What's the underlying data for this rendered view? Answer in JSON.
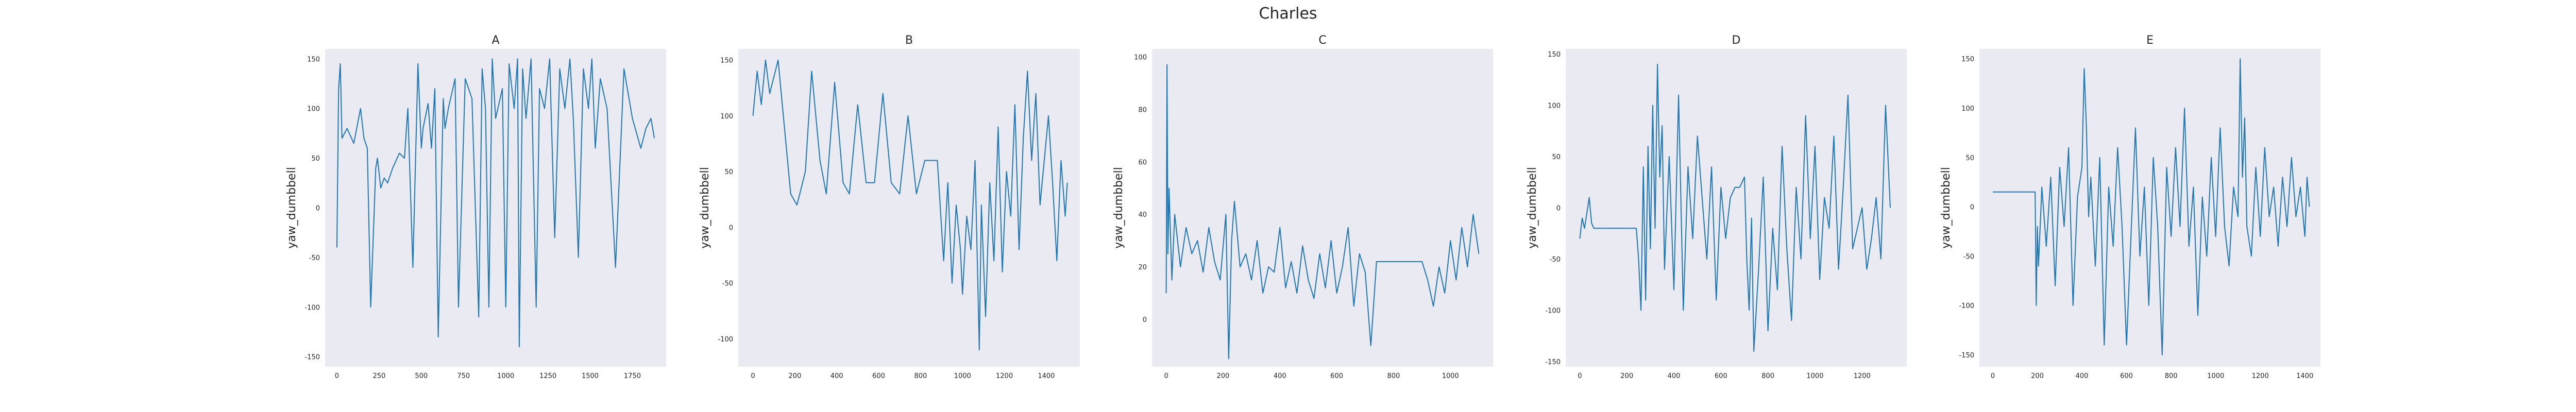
{
  "suptitle": "Charles",
  "chart_data": [
    {
      "type": "line",
      "title": "A",
      "ylabel": "yaw_dumbbell",
      "xlim": [
        -70,
        1950
      ],
      "ylim": [
        -160,
        160
      ],
      "xticks": [
        0,
        250,
        500,
        750,
        1000,
        1250,
        1500,
        1750
      ],
      "yticks": [
        -150,
        -100,
        -50,
        0,
        50,
        100,
        150
      ],
      "grid": false,
      "x": [
        0,
        10,
        20,
        30,
        60,
        100,
        140,
        160,
        180,
        200,
        230,
        240,
        260,
        280,
        300,
        330,
        370,
        400,
        420,
        450,
        480,
        500,
        510,
        540,
        560,
        580,
        600,
        630,
        640,
        660,
        700,
        720,
        760,
        800,
        840,
        860,
        880,
        900,
        920,
        940,
        980,
        1000,
        1020,
        1050,
        1070,
        1080,
        1100,
        1120,
        1150,
        1180,
        1200,
        1230,
        1260,
        1290,
        1320,
        1350,
        1380,
        1400,
        1430,
        1460,
        1490,
        1510,
        1530,
        1560,
        1600,
        1650,
        1700,
        1750,
        1800,
        1830,
        1860,
        1880
      ],
      "y": [
        -40,
        120,
        145,
        70,
        80,
        65,
        100,
        70,
        60,
        -100,
        40,
        50,
        20,
        30,
        25,
        40,
        55,
        50,
        100,
        -60,
        145,
        60,
        80,
        105,
        60,
        120,
        -130,
        110,
        80,
        100,
        130,
        -100,
        130,
        110,
        -110,
        140,
        100,
        -100,
        150,
        90,
        120,
        -100,
        145,
        100,
        150,
        -140,
        140,
        90,
        150,
        -100,
        120,
        100,
        150,
        -30,
        140,
        100,
        150,
        90,
        -50,
        140,
        100,
        150,
        60,
        130,
        100,
        -60,
        140,
        90,
        60,
        80,
        90,
        70
      ]
    },
    {
      "type": "line",
      "title": "B",
      "ylabel": "yaw_dumbbell",
      "xlim": [
        -70,
        1560
      ],
      "ylim": [
        -125,
        160
      ],
      "xticks": [
        0,
        200,
        400,
        600,
        800,
        1000,
        1200,
        1400
      ],
      "yticks": [
        -100,
        -50,
        0,
        50,
        100,
        150
      ],
      "grid": false,
      "x": [
        0,
        20,
        40,
        60,
        80,
        120,
        150,
        180,
        210,
        250,
        280,
        320,
        350,
        390,
        430,
        460,
        500,
        540,
        580,
        620,
        660,
        700,
        740,
        780,
        820,
        860,
        880,
        900,
        910,
        930,
        950,
        970,
        990,
        1000,
        1020,
        1040,
        1060,
        1080,
        1090,
        1110,
        1130,
        1150,
        1170,
        1190,
        1210,
        1230,
        1250,
        1270,
        1290,
        1310,
        1330,
        1350,
        1370,
        1390,
        1410,
        1430,
        1450,
        1470,
        1490,
        1500
      ],
      "y": [
        100,
        140,
        110,
        150,
        120,
        150,
        90,
        30,
        20,
        50,
        140,
        60,
        30,
        130,
        40,
        30,
        110,
        40,
        40,
        120,
        40,
        30,
        100,
        30,
        60,
        60,
        60,
        0,
        -30,
        40,
        -50,
        20,
        -20,
        -60,
        10,
        -20,
        60,
        -110,
        20,
        -80,
        40,
        -30,
        90,
        -40,
        50,
        10,
        110,
        -20,
        80,
        140,
        60,
        120,
        20,
        60,
        100,
        40,
        -30,
        60,
        10,
        40
      ]
    },
    {
      "type": "line",
      "title": "C",
      "ylabel": "yaw_dumbbell",
      "xlim": [
        -50,
        1150
      ],
      "ylim": [
        -18,
        103
      ],
      "xticks": [
        0,
        200,
        400,
        600,
        800,
        1000
      ],
      "yticks": [
        0,
        20,
        40,
        60,
        80,
        100
      ],
      "grid": false,
      "x": [
        0,
        3,
        6,
        10,
        20,
        30,
        50,
        70,
        90,
        110,
        130,
        150,
        170,
        190,
        210,
        220,
        230,
        240,
        260,
        280,
        300,
        320,
        340,
        360,
        380,
        400,
        420,
        440,
        460,
        480,
        500,
        520,
        540,
        560,
        580,
        600,
        620,
        640,
        660,
        680,
        700,
        720,
        740,
        900,
        920,
        940,
        960,
        980,
        1000,
        1020,
        1040,
        1060,
        1080,
        1100
      ],
      "y": [
        10,
        97,
        25,
        50,
        15,
        40,
        20,
        35,
        25,
        30,
        18,
        35,
        22,
        15,
        40,
        -15,
        30,
        45,
        20,
        25,
        15,
        30,
        10,
        20,
        18,
        35,
        12,
        22,
        10,
        28,
        15,
        8,
        25,
        12,
        30,
        10,
        20,
        35,
        5,
        25,
        18,
        -10,
        22,
        22,
        15,
        5,
        20,
        10,
        30,
        15,
        35,
        20,
        40,
        25
      ]
    },
    {
      "type": "line",
      "title": "D",
      "ylabel": "yaw_dumbbell",
      "xlim": [
        -60,
        1390
      ],
      "ylim": [
        -155,
        155
      ],
      "xticks": [
        0,
        200,
        400,
        600,
        800,
        1000,
        1200
      ],
      "yticks": [
        -150,
        -100,
        -50,
        0,
        50,
        100,
        150
      ],
      "grid": false,
      "x": [
        0,
        10,
        20,
        30,
        40,
        50,
        60,
        240,
        250,
        260,
        270,
        280,
        290,
        300,
        310,
        320,
        330,
        340,
        350,
        360,
        380,
        400,
        420,
        440,
        460,
        480,
        500,
        520,
        540,
        560,
        580,
        600,
        620,
        640,
        660,
        680,
        700,
        710,
        720,
        730,
        740,
        760,
        780,
        800,
        820,
        840,
        860,
        880,
        900,
        920,
        940,
        960,
        980,
        1000,
        1020,
        1040,
        1060,
        1080,
        1100,
        1120,
        1140,
        1160,
        1180,
        1200,
        1220,
        1240,
        1260,
        1280,
        1300,
        1320
      ],
      "y": [
        -30,
        -10,
        -20,
        -5,
        10,
        -15,
        -20,
        -20,
        -50,
        -100,
        40,
        -90,
        60,
        -40,
        100,
        -20,
        140,
        30,
        80,
        -60,
        50,
        -80,
        110,
        -100,
        40,
        -30,
        70,
        10,
        -50,
        40,
        -90,
        20,
        -30,
        10,
        20,
        20,
        30,
        -50,
        -100,
        -10,
        -140,
        -60,
        30,
        -120,
        -20,
        -80,
        60,
        -40,
        -110,
        20,
        -50,
        90,
        -30,
        60,
        -70,
        10,
        -20,
        70,
        -60,
        20,
        110,
        -40,
        -20,
        0,
        -60,
        -30,
        10,
        -50,
        100,
        0
      ]
    },
    {
      "type": "line",
      "title": "E",
      "ylabel": "yaw_dumbbell",
      "xlim": [
        -60,
        1470
      ],
      "ylim": [
        -162,
        160
      ],
      "xticks": [
        0,
        200,
        400,
        600,
        800,
        1000,
        1200,
        1400
      ],
      "yticks": [
        -150,
        -100,
        -50,
        0,
        50,
        100,
        150
      ],
      "grid": false,
      "x": [
        0,
        190,
        195,
        200,
        205,
        220,
        240,
        260,
        280,
        300,
        320,
        340,
        360,
        380,
        400,
        410,
        420,
        430,
        440,
        460,
        480,
        500,
        520,
        540,
        560,
        580,
        600,
        620,
        640,
        660,
        680,
        700,
        720,
        740,
        760,
        780,
        800,
        820,
        840,
        860,
        880,
        900,
        920,
        940,
        960,
        980,
        1000,
        1020,
        1040,
        1060,
        1080,
        1100,
        1110,
        1120,
        1130,
        1140,
        1160,
        1180,
        1200,
        1220,
        1240,
        1260,
        1280,
        1300,
        1320,
        1340,
        1360,
        1380,
        1400,
        1410,
        1420
      ],
      "y": [
        15,
        15,
        -100,
        -20,
        -60,
        20,
        -40,
        30,
        -80,
        40,
        -20,
        60,
        -100,
        10,
        40,
        140,
        80,
        -10,
        30,
        -60,
        50,
        -140,
        20,
        -40,
        60,
        -20,
        -140,
        -30,
        80,
        -50,
        20,
        -100,
        50,
        -20,
        -150,
        40,
        -30,
        60,
        -20,
        100,
        -40,
        20,
        -110,
        10,
        -50,
        50,
        -30,
        80,
        -20,
        -60,
        20,
        -10,
        150,
        30,
        90,
        -20,
        -50,
        40,
        -30,
        60,
        -10,
        20,
        -40,
        30,
        -20,
        50,
        -10,
        20,
        -30,
        30,
        0
      ]
    }
  ]
}
